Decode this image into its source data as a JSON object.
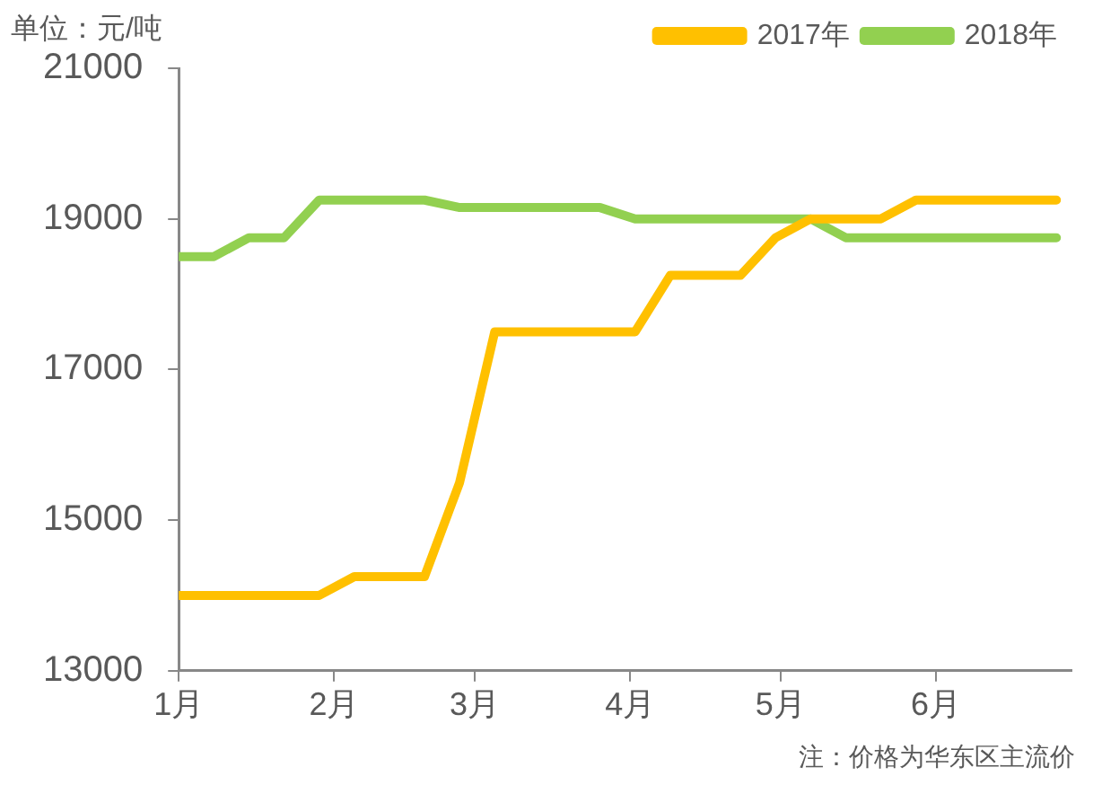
{
  "chart_data": {
    "type": "line",
    "annotations": [
      "单位：元/吨",
      "注：价格为华东区主流价"
    ],
    "x": [
      "--01-01",
      "--01-08",
      "--01-15",
      "--01-22",
      "--01-29",
      "--02-05",
      "--02-12",
      "--02-19",
      "--02-26",
      "--03-05",
      "--03-12",
      "--03-19",
      "--03-26",
      "--04-02",
      "--04-09",
      "--04-16",
      "--04-23",
      "--04-30",
      "--05-07",
      "--05-14",
      "--05-21",
      "--05-28",
      "--06-04",
      "--06-11",
      "--06-18",
      "--06-25"
    ],
    "series": [
      {
        "name": "2017年",
        "color": "#ffc000",
        "values": [
          14000,
          14000,
          14000,
          14000,
          14000,
          14250,
          14250,
          14250,
          15500,
          17500,
          17500,
          17500,
          17500,
          17500,
          18250,
          18250,
          18250,
          18750,
          19000,
          19000,
          19000,
          19250,
          19250,
          19250,
          19250,
          19250
        ]
      },
      {
        "name": "2018年",
        "color": "#92d050",
        "values": [
          18500,
          18500,
          18750,
          18750,
          19250,
          19250,
          19250,
          19250,
          19150,
          19150,
          19150,
          19150,
          19150,
          19000,
          19000,
          19000,
          19000,
          19000,
          19000,
          18750,
          18750,
          18750,
          18750,
          18750,
          18750,
          18750
        ]
      }
    ],
    "xlim": [
      "--01-01",
      "--06-28"
    ],
    "xticks": [
      {
        "value": "--01-01",
        "label": "1月"
      },
      {
        "value": "--02-01",
        "label": "2月"
      },
      {
        "value": "--03-01",
        "label": "3月"
      },
      {
        "value": "--04-01",
        "label": "4月"
      },
      {
        "value": "--05-01",
        "label": "5月"
      },
      {
        "value": "--06-01",
        "label": "6月"
      }
    ],
    "ylim": [
      13000,
      21000
    ],
    "yticks": [
      13000,
      15000,
      17000,
      19000,
      21000
    ],
    "grid": false,
    "legend": "top right",
    "marker": "none",
    "line_style": "solid"
  }
}
